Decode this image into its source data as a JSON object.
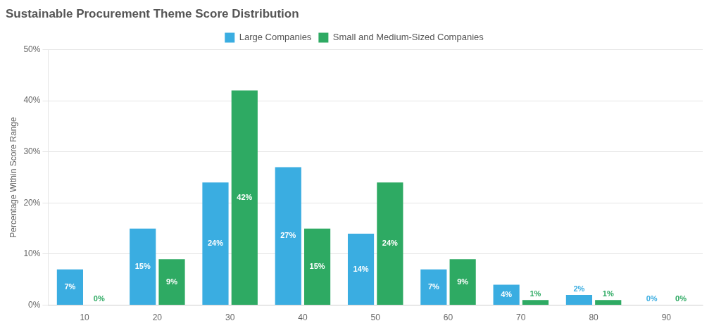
{
  "chart_data": {
    "type": "bar",
    "title": "Sustainable Procurement Theme Score Distribution",
    "y_label": "Percentage Within Score Range",
    "categories": [
      10,
      20,
      30,
      40,
      50,
      60,
      70,
      80,
      90
    ],
    "series": [
      {
        "name": "Large Companies",
        "color": "#3AADE1",
        "values": [
          7,
          15,
          24,
          27,
          14,
          7,
          4,
          2,
          0
        ],
        "value_labels": [
          "7%",
          "15%",
          "24%",
          "27%",
          "14%",
          "7%",
          "4%",
          "2%",
          "0%"
        ]
      },
      {
        "name": "Small and Medium-Sized Companies",
        "color": "#2EAA63",
        "values": [
          0,
          9,
          42,
          15,
          24,
          9,
          1,
          1,
          0
        ],
        "value_labels": [
          "0%",
          "9%",
          "42%",
          "15%",
          "24%",
          "9%",
          "1%",
          "1%",
          "0%"
        ]
      }
    ],
    "ylim": [
      0,
      50
    ],
    "yticks": [
      {
        "value": 0,
        "label": "0%"
      },
      {
        "value": 10,
        "label": "10%"
      },
      {
        "value": 20,
        "label": "20%"
      },
      {
        "value": 30,
        "label": "30%"
      },
      {
        "value": 40,
        "label": "40%"
      },
      {
        "value": 50,
        "label": "50%"
      }
    ],
    "grid": true,
    "legend": "top",
    "data_labels": true
  }
}
